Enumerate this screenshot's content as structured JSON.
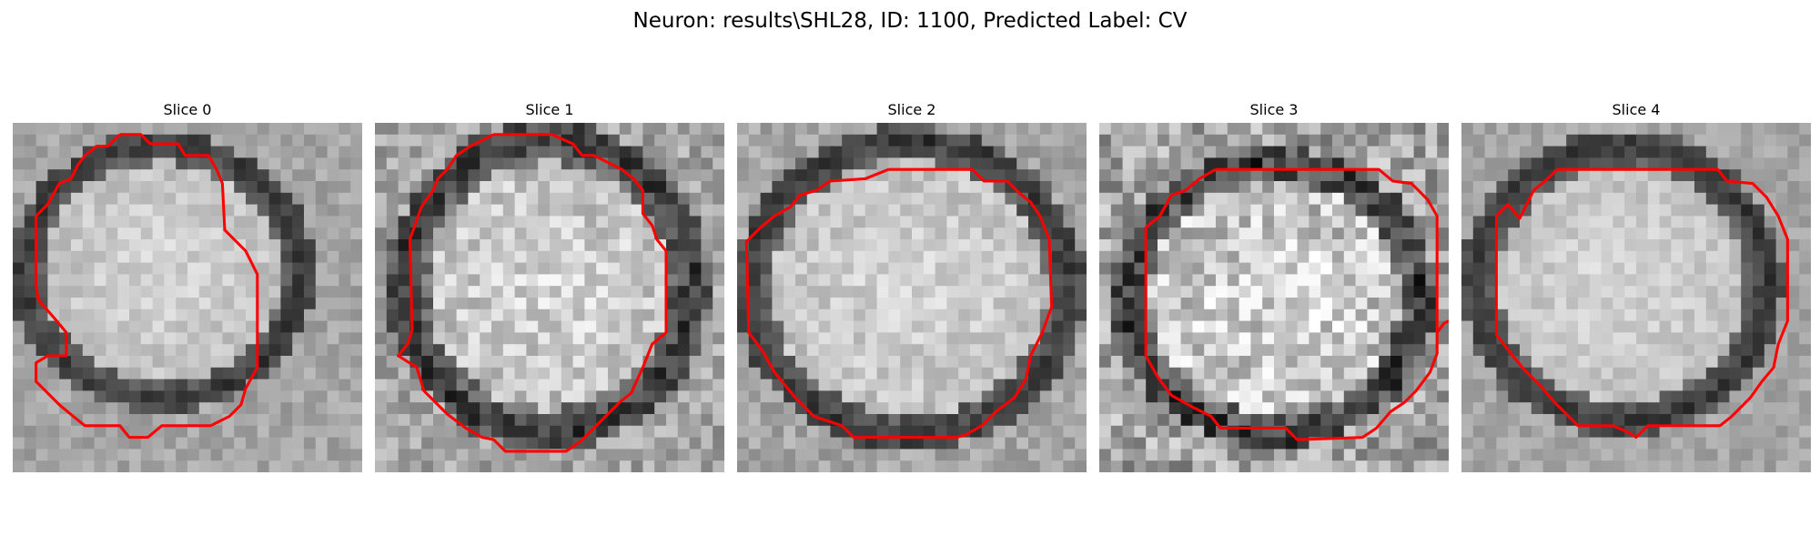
{
  "figure": {
    "title": "Neuron: results\\SHL28, ID: 1100, Predicted Label: CV"
  },
  "panels": [
    {
      "title": "Slice 0"
    },
    {
      "title": "Slice 1"
    },
    {
      "title": "Slice 2"
    },
    {
      "title": "Slice 3"
    },
    {
      "title": "Slice 4"
    }
  ],
  "colors": {
    "contour": "#ff0000",
    "membrane": "#2a2a2a",
    "interior_light": "#e8e8e8",
    "background": "#a8a8a8"
  },
  "image_description": "Five grayscale pixelated microscopy slices of a round cell with a dark membrane, each overlaid with a red segmentation contour."
}
